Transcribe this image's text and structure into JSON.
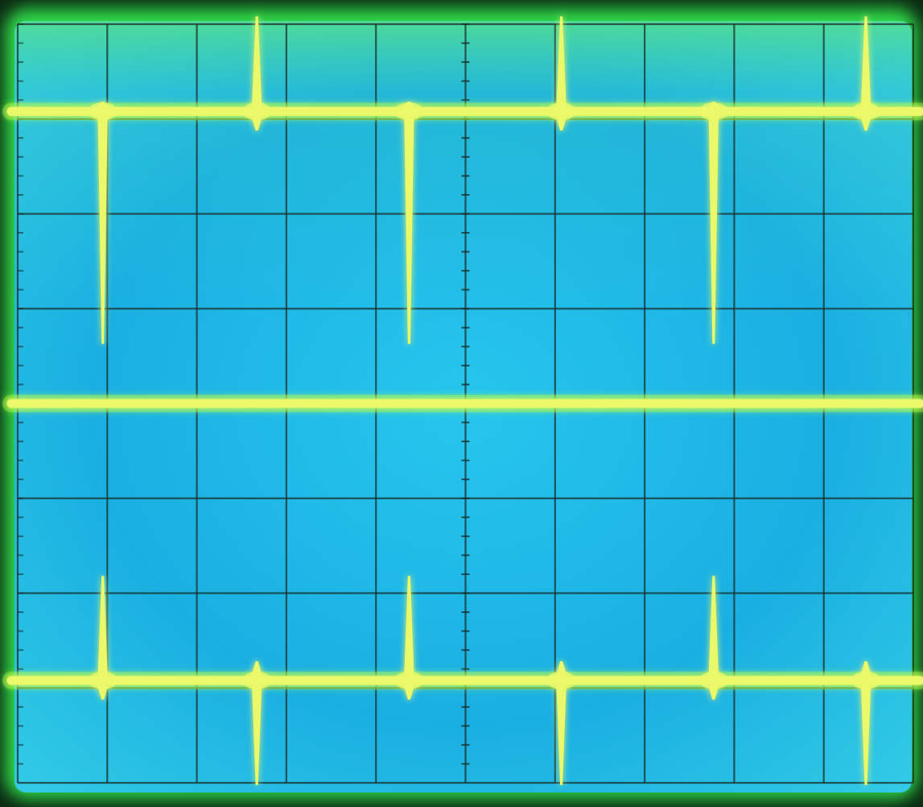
{
  "screen": {
    "divisions": {
      "horizontal": 10,
      "vertical": 8
    },
    "minor_ticks_per_division": 5,
    "graticule_color": "#1a2f2a",
    "background_colors": [
      "#1fc3ea",
      "#18a9df",
      "#37d6ee"
    ],
    "bezel_color": "#2fd84a",
    "trace_color": "#eaf86a",
    "glow_color": "#a6ff3a"
  },
  "chart_data": {
    "type": "line",
    "title": "",
    "xlabel": "",
    "ylabel": "",
    "xlim": [
      0,
      10
    ],
    "ylim": [
      0,
      8
    ],
    "grid": true,
    "series": [
      {
        "baseline": 7.08,
        "spikes": [
          {
            "x": 0.95,
            "up": 0.0,
            "down": 2.35
          },
          {
            "x": 2.67,
            "up": 0.9,
            "down": 0.1
          },
          {
            "x": 4.37,
            "up": 0.0,
            "down": 2.35
          },
          {
            "x": 6.07,
            "up": 0.9,
            "down": 0.1
          },
          {
            "x": 7.77,
            "up": 0.0,
            "down": 2.35
          },
          {
            "x": 9.47,
            "up": 0.9,
            "down": 0.1
          }
        ]
      },
      {
        "baseline": 4.0,
        "spikes": []
      },
      {
        "baseline": 1.08,
        "spikes": [
          {
            "x": 0.95,
            "up": 1.0,
            "down": 0.1
          },
          {
            "x": 2.67,
            "up": 0.1,
            "down": 1.0
          },
          {
            "x": 4.37,
            "up": 1.0,
            "down": 0.1
          },
          {
            "x": 6.07,
            "up": 0.1,
            "down": 1.0
          },
          {
            "x": 7.77,
            "up": 1.0,
            "down": 0.1
          },
          {
            "x": 9.47,
            "up": 0.1,
            "down": 1.0
          }
        ]
      }
    ]
  }
}
